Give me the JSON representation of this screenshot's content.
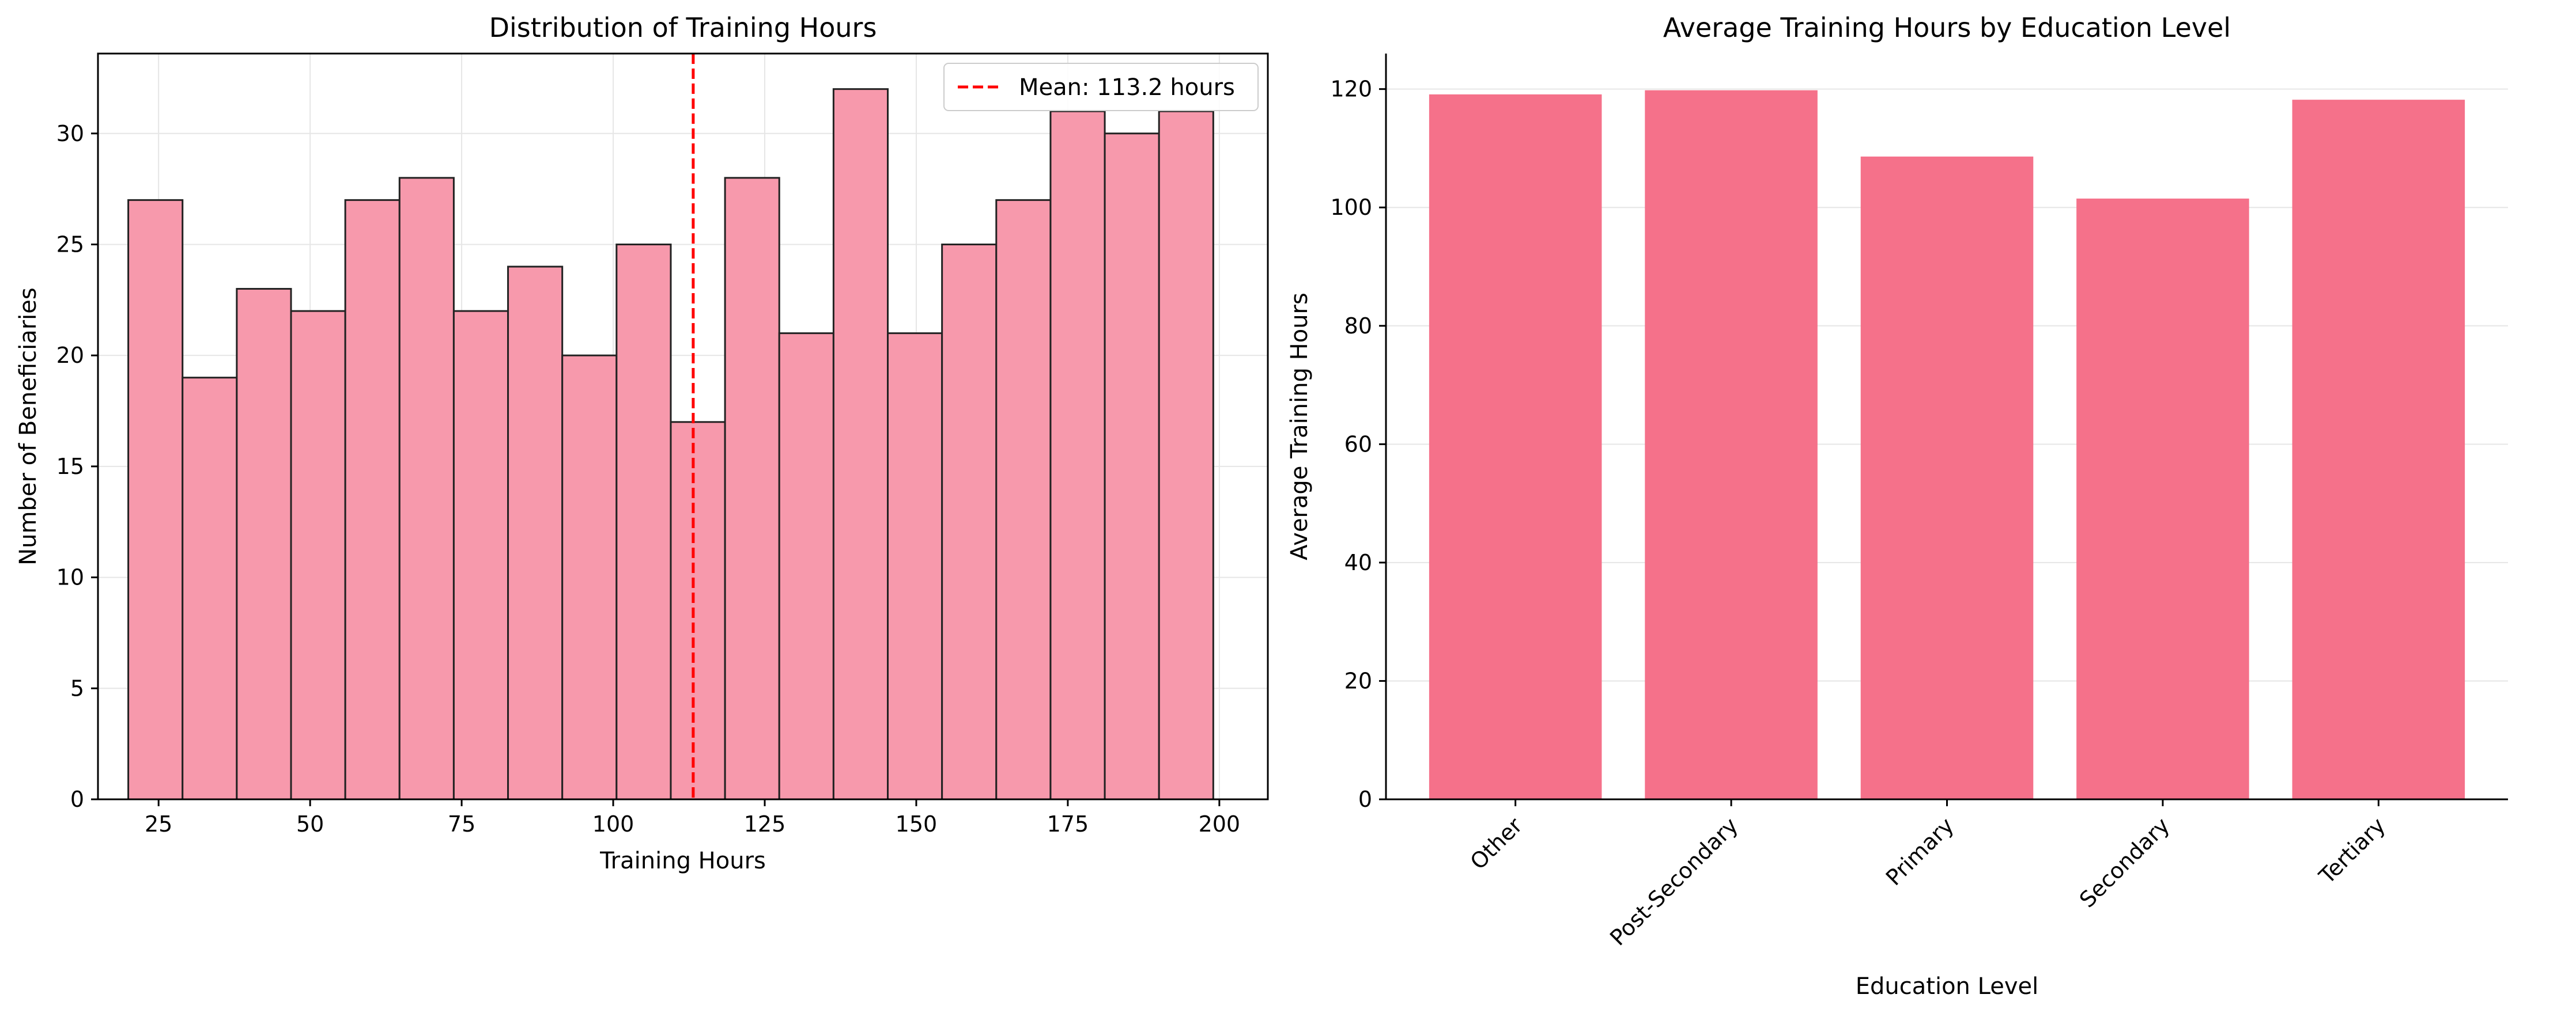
{
  "chart_data": [
    {
      "type": "bar",
      "subtype": "histogram",
      "title": "Distribution of Training Hours",
      "xlabel": "Training Hours",
      "ylabel": "Number of Beneficiaries",
      "xlim": [
        15,
        208
      ],
      "ylim": [
        0,
        33.6
      ],
      "xticks": [
        25,
        50,
        75,
        100,
        125,
        150,
        175,
        200
      ],
      "yticks": [
        0,
        5,
        10,
        15,
        20,
        25,
        30
      ],
      "grid": true,
      "legend_position": "top-right",
      "bin_start": 20,
      "bin_width": 8.95,
      "counts": [
        27,
        19,
        23,
        22,
        27,
        28,
        22,
        24,
        20,
        25,
        17,
        28,
        21,
        32,
        21,
        25,
        27,
        31,
        30,
        31
      ],
      "bar_color": "#f799ac",
      "edge_color": "#222222",
      "mean_line": {
        "value": 113.2,
        "label": "Mean: 113.2 hours",
        "color": "#ff0000",
        "style": "dashed"
      }
    },
    {
      "type": "bar",
      "title": "Average Training Hours by Education Level",
      "xlabel": "Education Level",
      "ylabel": "Average Training Hours",
      "ylim": [
        0,
        126
      ],
      "yticks": [
        0,
        20,
        40,
        60,
        80,
        100,
        120
      ],
      "grid": true,
      "categories": [
        "Other",
        "Post-Secondary",
        "Primary",
        "Secondary",
        "Tertiary"
      ],
      "values": [
        119.1,
        119.8,
        108.6,
        101.5,
        118.2
      ],
      "bar_color": "#f5718a",
      "tick_rotation": 45
    }
  ]
}
